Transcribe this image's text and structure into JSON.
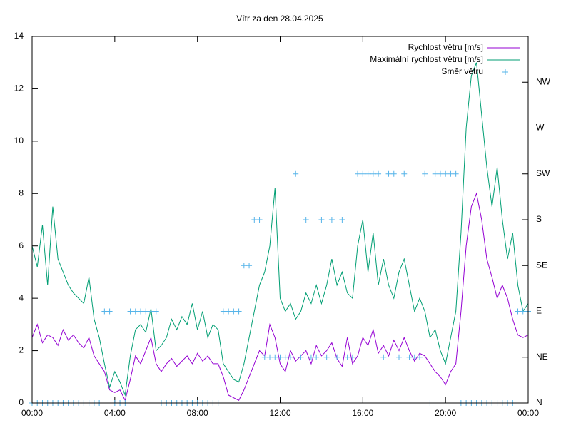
{
  "chart_data": {
    "type": "line",
    "title": "Vítr za den 28.04.2025",
    "x": [
      0,
      0.25,
      0.5,
      0.75,
      1,
      1.25,
      1.5,
      1.75,
      2,
      2.25,
      2.5,
      2.75,
      3,
      3.25,
      3.5,
      3.75,
      4,
      4.25,
      4.5,
      4.75,
      5,
      5.25,
      5.5,
      5.75,
      6,
      6.25,
      6.5,
      6.75,
      7,
      7.25,
      7.5,
      7.75,
      8,
      8.25,
      8.5,
      8.75,
      9,
      9.25,
      9.5,
      9.75,
      10,
      10.25,
      10.5,
      10.75,
      11,
      11.25,
      11.5,
      11.75,
      12,
      12.25,
      12.5,
      12.75,
      13,
      13.25,
      13.5,
      13.75,
      14,
      14.25,
      14.5,
      14.75,
      15,
      15.25,
      15.5,
      15.75,
      16,
      16.25,
      16.5,
      16.75,
      17,
      17.25,
      17.5,
      17.75,
      18,
      18.25,
      18.5,
      18.75,
      19,
      19.25,
      19.5,
      19.75,
      20,
      20.25,
      20.5,
      20.75,
      21,
      21.25,
      21.5,
      21.75,
      22,
      22.25,
      22.5,
      22.75,
      23,
      23.25,
      23.5,
      23.75,
      24
    ],
    "series": [
      {
        "name": "Rychlost větru [m/s]",
        "color": "#9400d3",
        "values": [
          2.5,
          3,
          2.3,
          2.6,
          2.5,
          2.2,
          2.8,
          2.4,
          2.6,
          2.3,
          2.1,
          2.5,
          1.8,
          1.5,
          1.2,
          0.5,
          0.4,
          0.5,
          0.1,
          0.9,
          1.8,
          1.5,
          2.0,
          2.5,
          1.5,
          1.2,
          1.5,
          1.7,
          1.4,
          1.6,
          1.8,
          1.5,
          1.9,
          1.6,
          1.8,
          1.5,
          1.5,
          1.0,
          0.3,
          0.2,
          0.1,
          0.5,
          1.0,
          1.5,
          2.0,
          1.8,
          3.0,
          2.5,
          1.5,
          1.2,
          2.0,
          1.6,
          1.8,
          2.0,
          1.5,
          2.2,
          1.8,
          2.0,
          2.3,
          1.7,
          1.4,
          2.5,
          1.5,
          1.8,
          2.5,
          2.2,
          2.8,
          1.9,
          2.2,
          1.8,
          2.4,
          2.0,
          2.5,
          2.0,
          1.6,
          1.9,
          1.8,
          1.5,
          1.2,
          1.0,
          0.7,
          1.2,
          1.5,
          3.5,
          6.0,
          7.5,
          8.0,
          7.0,
          5.5,
          4.8,
          4.0,
          4.5,
          4.0,
          3.2,
          2.6,
          2.5,
          2.6
        ]
      },
      {
        "name": "Maximální rychlost větru [m/s]",
        "color": "#009e73",
        "values": [
          6,
          5.2,
          6.8,
          4.5,
          7.5,
          5.5,
          5.0,
          4.5,
          4.2,
          4.0,
          3.8,
          4.8,
          3.2,
          2.5,
          1.5,
          0.6,
          1.2,
          0.8,
          0.3,
          1.8,
          2.8,
          3.0,
          2.7,
          3.6,
          2.0,
          2.2,
          2.5,
          3.2,
          2.8,
          3.3,
          3.0,
          3.8,
          2.8,
          3.5,
          2.5,
          3.0,
          2.8,
          1.5,
          1.2,
          0.9,
          0.8,
          1.5,
          2.5,
          3.5,
          4.5,
          5.0,
          6.0,
          8.2,
          4.0,
          3.5,
          3.8,
          3.2,
          3.5,
          4.2,
          3.8,
          4.5,
          3.8,
          4.5,
          5.5,
          4.5,
          5.0,
          4.2,
          4.0,
          6.0,
          7.0,
          5.0,
          6.5,
          4.5,
          5.5,
          4.5,
          4.0,
          5.0,
          5.5,
          4.5,
          3.5,
          4.0,
          3.5,
          2.5,
          2.8,
          2.0,
          1.5,
          2.5,
          3.5,
          6.5,
          10.5,
          12.5,
          13.0,
          11.0,
          9.0,
          7.5,
          9.0,
          7.0,
          5.5,
          6.5,
          4.5,
          3.5,
          3.8
        ]
      },
      {
        "name": "Směr větru",
        "color": "#56b4e9",
        "axis": "y2",
        "marker": "+",
        "values": [
          0,
          0,
          0,
          0,
          0,
          0,
          0,
          0,
          0,
          0,
          0,
          0,
          0,
          0,
          90,
          90,
          0,
          0,
          0,
          90,
          90,
          90,
          90,
          90,
          90,
          0,
          0,
          0,
          0,
          0,
          0,
          0,
          0,
          0,
          0,
          0,
          0,
          90,
          90,
          90,
          90,
          135,
          135,
          180,
          180,
          45,
          45,
          45,
          45,
          45,
          45,
          225,
          45,
          180,
          45,
          45,
          180,
          45,
          180,
          45,
          180,
          45,
          45,
          225,
          225,
          225,
          225,
          225,
          45,
          225,
          225,
          45,
          225,
          45,
          45,
          45,
          225,
          0,
          225,
          225,
          225,
          225,
          225,
          0,
          0,
          0,
          0,
          0,
          0,
          0,
          0,
          0,
          0,
          0,
          90,
          90,
          90
        ]
      }
    ],
    "xlim": [
      0,
      24
    ],
    "xticks": [
      {
        "value": 0,
        "label": "00:00"
      },
      {
        "value": 4,
        "label": "04:00"
      },
      {
        "value": 8,
        "label": "08:00"
      },
      {
        "value": 12,
        "label": "12:00"
      },
      {
        "value": 16,
        "label": "16:00"
      },
      {
        "value": 20,
        "label": "20:00"
      },
      {
        "value": 24,
        "label": "00:00"
      }
    ],
    "ylim": [
      0,
      14
    ],
    "yticks": [
      0,
      2,
      4,
      6,
      8,
      10,
      12,
      14
    ],
    "y2lim": [
      0,
      360
    ],
    "y2ticks": [
      {
        "value": 0,
        "label": "N"
      },
      {
        "value": 45,
        "label": "NE"
      },
      {
        "value": 90,
        "label": "E"
      },
      {
        "value": 135,
        "label": "SE"
      },
      {
        "value": 180,
        "label": "S"
      },
      {
        "value": 225,
        "label": "SW"
      },
      {
        "value": 270,
        "label": "W"
      },
      {
        "value": 315,
        "label": "NW"
      }
    ],
    "legend": "top-right"
  }
}
